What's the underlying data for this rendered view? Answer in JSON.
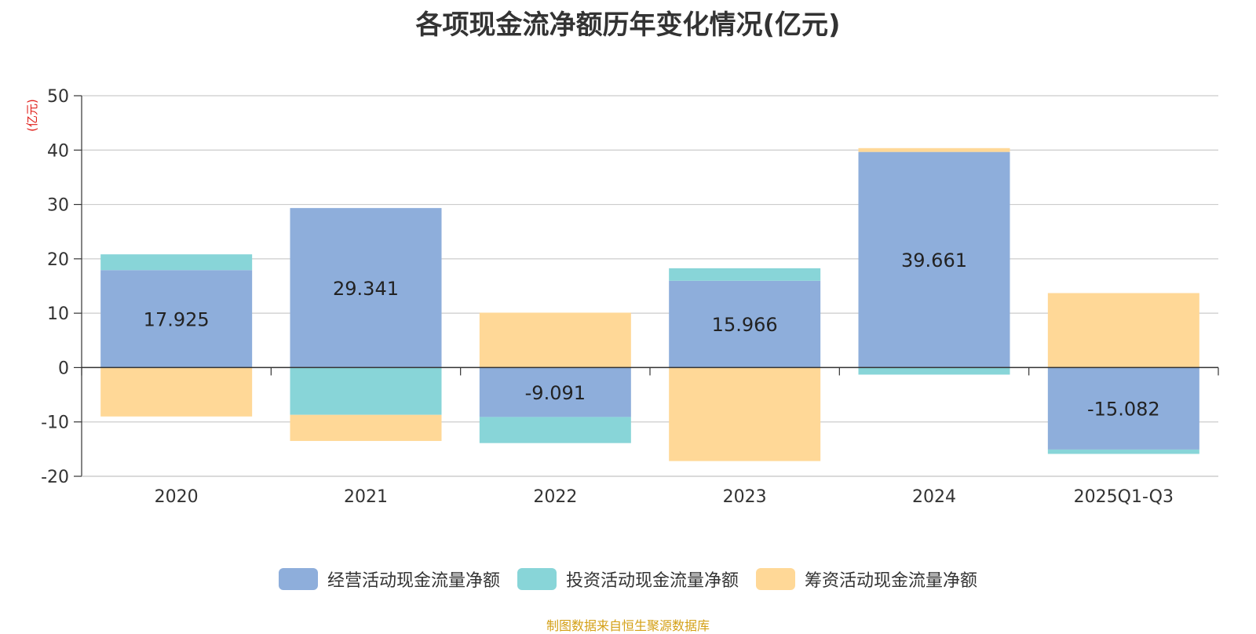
{
  "chart_data": {
    "type": "bar",
    "stacked": true,
    "title": "各项现金流净额历年变化情况(亿元)",
    "ylabel": "(亿元)",
    "xlabel": "",
    "categories": [
      "2020",
      "2021",
      "2022",
      "2023",
      "2024",
      "2025Q1-Q3"
    ],
    "ylim": [
      -20,
      50
    ],
    "yticks": [
      50,
      40,
      30,
      20,
      10,
      0,
      -10,
      -20
    ],
    "grid": true,
    "legend_position": "bottom",
    "series": [
      {
        "name": "经营活动现金流量净额",
        "color": "#8eaedb",
        "values": [
          17.925,
          29.341,
          -9.091,
          15.966,
          39.661,
          -15.082
        ],
        "labels": [
          "17.925",
          "29.341",
          "-9.091",
          "15.966",
          "39.661",
          "-15.082"
        ]
      },
      {
        "name": "投资活动现金流量净额",
        "color": "#88d5d8",
        "values": [
          2.9,
          -8.7,
          -4.8,
          2.3,
          -1.3,
          -0.8
        ]
      },
      {
        "name": "筹资活动现金流量净额",
        "color": "#ffd897",
        "values": [
          -9.0,
          -4.8,
          10.1,
          -17.2,
          0.7,
          13.7
        ]
      }
    ]
  },
  "footer": "制图数据来自恒生聚源数据库"
}
